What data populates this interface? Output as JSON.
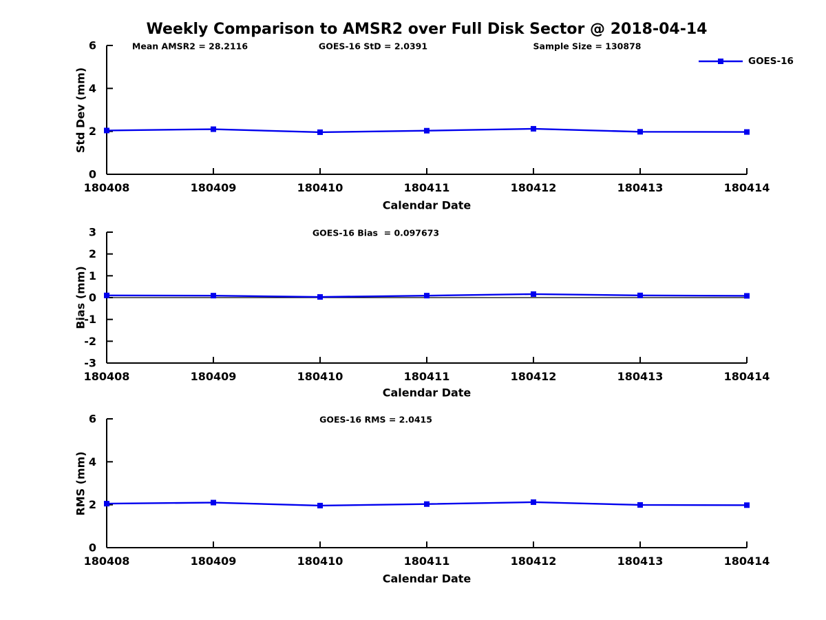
{
  "title": "Weekly Comparison to AMSR2 over Full Disk Sector @ 2018-04-14",
  "legend": {
    "label": "GOES-16",
    "position": "top-right-first-subplot",
    "box": false
  },
  "colors": {
    "series": "#0000ee",
    "axis": "#000000",
    "text": "#000000",
    "background": "#ffffff"
  },
  "chart_data": [
    {
      "type": "line",
      "ylabel": "Std Dev (mm)",
      "xlabel": "Calendar Date",
      "ylim": [
        0,
        6
      ],
      "y_ticks": [
        0,
        2,
        4,
        6
      ],
      "categories": [
        "180408",
        "180409",
        "180410",
        "180411",
        "180412",
        "180413",
        "180414"
      ],
      "series": [
        {
          "name": "GOES-16",
          "marker": "square",
          "values": [
            2.04,
            2.1,
            1.96,
            2.03,
            2.12,
            1.98,
            1.97
          ]
        }
      ],
      "annotations": [
        "Mean AMSR2 = 28.2116",
        "GOES-16 StD = 2.0391",
        "Sample Size = 130878"
      ],
      "zero_line": false,
      "grid": false,
      "legend_visible": true
    },
    {
      "type": "line",
      "ylabel": "Bias (mm)",
      "xlabel": "Calendar Date",
      "ylim": [
        -3,
        3
      ],
      "y_ticks": [
        -3,
        -2,
        -1,
        0,
        1,
        2,
        3
      ],
      "categories": [
        "180408",
        "180409",
        "180410",
        "180411",
        "180412",
        "180413",
        "180414"
      ],
      "series": [
        {
          "name": "GOES-16",
          "marker": "square",
          "values": [
            0.1,
            0.09,
            0.03,
            0.09,
            0.16,
            0.1,
            0.08
          ]
        }
      ],
      "annotations": [
        "GOES-16 Bias  = 0.097673"
      ],
      "zero_line": true,
      "grid": false,
      "legend_visible": false
    },
    {
      "type": "line",
      "ylabel": "RMS (mm)",
      "xlabel": "Calendar Date",
      "ylim": [
        0,
        6
      ],
      "y_ticks": [
        0,
        2,
        4,
        6
      ],
      "categories": [
        "180408",
        "180409",
        "180410",
        "180411",
        "180412",
        "180413",
        "180414"
      ],
      "series": [
        {
          "name": "GOES-16",
          "marker": "square",
          "values": [
            2.05,
            2.1,
            1.96,
            2.03,
            2.12,
            1.99,
            1.98
          ]
        }
      ],
      "annotations": [
        "GOES-16 RMS = 2.0415"
      ],
      "zero_line": false,
      "grid": false,
      "legend_visible": false
    }
  ]
}
